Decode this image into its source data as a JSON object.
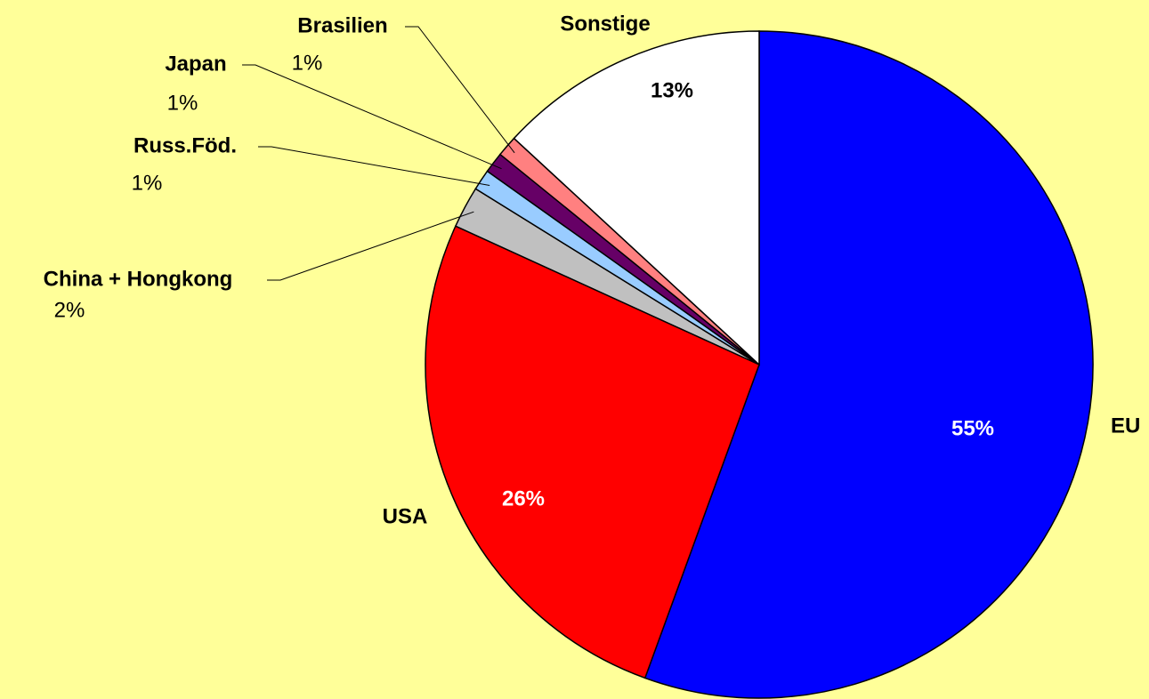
{
  "chart_data": {
    "type": "pie",
    "categories": [
      "EU",
      "USA",
      "China + Hongkong",
      "Russ.Föd.",
      "Japan",
      "Brasilien",
      "Sonstige"
    ],
    "values": [
      55,
      26,
      2,
      1,
      1,
      1,
      13
    ],
    "value_labels": [
      "55%",
      "26%",
      "2%",
      "1%",
      "1%",
      "1%",
      "13%"
    ],
    "colors": [
      "#0000ff",
      "#ff0000",
      "#c0c0c0",
      "#99ccff",
      "#660066",
      "#ff8080",
      "#ffffff"
    ]
  }
}
